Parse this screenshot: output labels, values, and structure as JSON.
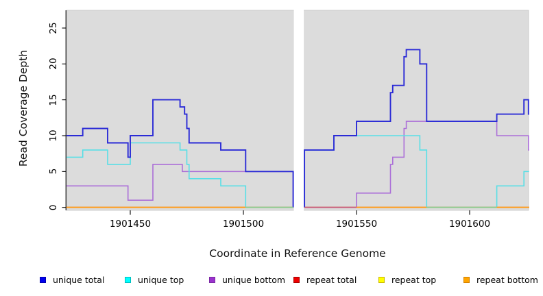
{
  "chart_data": {
    "type": "line",
    "subtype": "step-coverage-plot",
    "title": "",
    "xlabel": "Coordinate in Reference Genome",
    "ylabel": "Read Coverage Depth",
    "x_ticks": [
      1901450,
      1901500,
      1901550,
      1901600
    ],
    "y_ticks": [
      0,
      5,
      10,
      15,
      20,
      25
    ],
    "xlim": [
      1901421.8,
      1901626.3
    ],
    "ylim": [
      0,
      27.5
    ],
    "grid": false,
    "plot_background": "#dcdcdc",
    "gap_region": {
      "x_start": 1901522,
      "x_end": 1901527
    },
    "legend_position": "bottom",
    "series": [
      {
        "name": "unique total",
        "line_color": "#2b2bd6",
        "legend_color": "#0000ee",
        "legend_border": "#0000b0",
        "segments": [
          [
            [
              1901421.8,
              10
            ],
            [
              1901429,
              11
            ],
            [
              1901440,
              9
            ],
            [
              1901449,
              7
            ],
            [
              1901450,
              10
            ],
            [
              1901460,
              15
            ],
            [
              1901472,
              14
            ],
            [
              1901474,
              13
            ],
            [
              1901475,
              11
            ],
            [
              1901476,
              9
            ],
            [
              1901490,
              8
            ],
            [
              1901501,
              5
            ],
            [
              1901522,
              0
            ]
          ],
          [
            [
              1901527,
              0
            ],
            [
              1901527,
              8
            ],
            [
              1901540,
              10
            ],
            [
              1901550,
              12
            ],
            [
              1901565,
              16
            ],
            [
              1901566,
              17
            ],
            [
              1901571,
              21
            ],
            [
              1901572,
              22
            ],
            [
              1901578,
              20
            ],
            [
              1901581,
              12
            ],
            [
              1901612,
              13
            ],
            [
              1901624,
              15
            ],
            [
              1901626,
              13
            ],
            [
              1901626.3,
              13
            ]
          ]
        ]
      },
      {
        "name": "unique top",
        "line_color": "#58dfe6",
        "legend_color": "#00ffff",
        "legend_border": "#00bdbd",
        "segments": [
          [
            [
              1901421.8,
              7
            ],
            [
              1901429,
              8
            ],
            [
              1901440,
              6
            ],
            [
              1901450,
              9
            ],
            [
              1901472,
              8
            ],
            [
              1901475,
              6
            ],
            [
              1901476,
              4
            ],
            [
              1901490,
              3
            ],
            [
              1901501,
              0
            ],
            [
              1901522,
              0
            ]
          ],
          [
            [
              1901527,
              0
            ],
            [
              1901527,
              8
            ],
            [
              1901540,
              10
            ],
            [
              1901578,
              8
            ],
            [
              1901581,
              0
            ],
            [
              1901612,
              3
            ],
            [
              1901624,
              5
            ],
            [
              1901626.3,
              5
            ]
          ]
        ]
      },
      {
        "name": "unique bottom",
        "line_color": "#ab6fd8",
        "legend_color": "#9a32cd",
        "legend_border": "#7b28a4",
        "segments": [
          [
            [
              1901421.8,
              3
            ],
            [
              1901449,
              1
            ],
            [
              1901460,
              6
            ],
            [
              1901473,
              5
            ],
            [
              1901522,
              0
            ]
          ],
          [
            [
              1901527,
              0
            ],
            [
              1901550,
              2
            ],
            [
              1901565,
              6
            ],
            [
              1901566,
              7
            ],
            [
              1901571,
              11
            ],
            [
              1901572,
              12
            ],
            [
              1901612,
              10
            ],
            [
              1901626,
              8
            ],
            [
              1901626.3,
              8
            ]
          ]
        ]
      },
      {
        "name": "repeat total",
        "line_color": "#dd2222",
        "legend_color": "#ee0000",
        "legend_border": "#a40000",
        "segments": [
          [
            [
              1901421.8,
              0
            ],
            [
              1901522,
              0
            ]
          ],
          [
            [
              1901527,
              0
            ],
            [
              1901626.3,
              0
            ]
          ]
        ]
      },
      {
        "name": "repeat top",
        "line_color": "#e8e800",
        "legend_color": "#ffff00",
        "legend_border": "#c8b400",
        "segments": [
          [
            [
              1901421.8,
              0
            ],
            [
              1901522,
              0
            ]
          ],
          [
            [
              1901527,
              0
            ],
            [
              1901626.3,
              0
            ]
          ]
        ]
      },
      {
        "name": "repeat bottom",
        "line_color": "#ff9d1e",
        "legend_color": "#ffa500",
        "legend_border": "#d07e00",
        "segments": [
          [
            [
              1901421.8,
              0
            ],
            [
              1901522,
              0
            ]
          ],
          [
            [
              1901527,
              0
            ],
            [
              1901626.3,
              0
            ]
          ]
        ]
      }
    ],
    "zero_line_visible_segments": [
      {
        "x_start": 1901421.8,
        "x_end": 1901501,
        "color": "#ff9d1e"
      },
      {
        "x_start": 1901501,
        "x_end": 1901522,
        "color": "#90cb90"
      },
      {
        "x_start": 1901527,
        "x_end": 1901550,
        "color": "#c95f7d"
      },
      {
        "x_start": 1901550,
        "x_end": 1901581,
        "color": "#ff9d1e"
      },
      {
        "x_start": 1901581,
        "x_end": 1901612,
        "color": "#90cb90"
      },
      {
        "x_start": 1901612,
        "x_end": 1901626.3,
        "color": "#ff9d1e"
      }
    ]
  },
  "legend": {
    "items": [
      "unique total",
      "unique top",
      "unique bottom",
      "repeat total",
      "repeat top",
      "repeat bottom"
    ]
  }
}
